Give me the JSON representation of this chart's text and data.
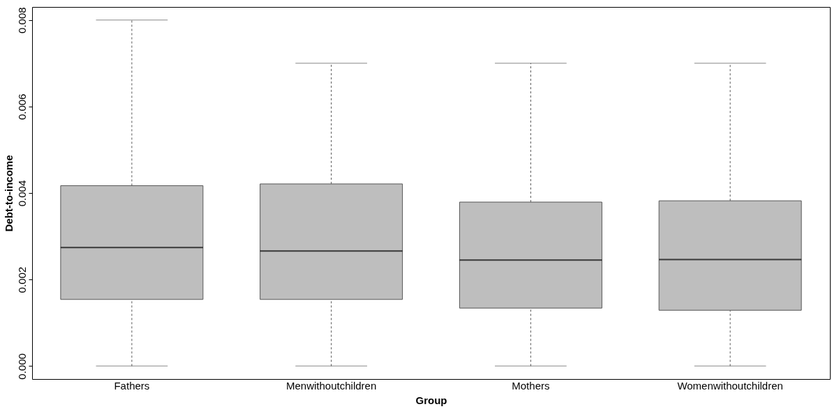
{
  "chart_data": {
    "type": "box",
    "xlabel": "Group",
    "ylabel": "Debt-to-income",
    "categories": [
      "Fathers",
      "Menwithoutchildren",
      "Mothers",
      "Womenwithoutchildren"
    ],
    "color": "#bebebe",
    "boxes": [
      {
        "low": 0.0,
        "q1": 0.00154,
        "median": 0.00274,
        "q3": 0.00417,
        "high": 0.008
      },
      {
        "low": 0.0,
        "q1": 0.00154,
        "median": 0.00266,
        "q3": 0.00421,
        "high": 0.007
      },
      {
        "low": 0.0,
        "q1": 0.00134,
        "median": 0.00245,
        "q3": 0.00379,
        "high": 0.007
      },
      {
        "low": 0.0,
        "q1": 0.00129,
        "median": 0.00246,
        "q3": 0.00382,
        "high": 0.007
      }
    ],
    "ylim": [
      -0.0003,
      0.0083
    ],
    "yticks": [
      {
        "value": 0,
        "label": "0.000"
      },
      {
        "value": 0.002,
        "label": "0.002"
      },
      {
        "value": 0.004,
        "label": "0.004"
      },
      {
        "value": 0.006,
        "label": "0.006"
      },
      {
        "value": 0.008,
        "label": "0.008"
      }
    ],
    "line_style": "dashed"
  }
}
